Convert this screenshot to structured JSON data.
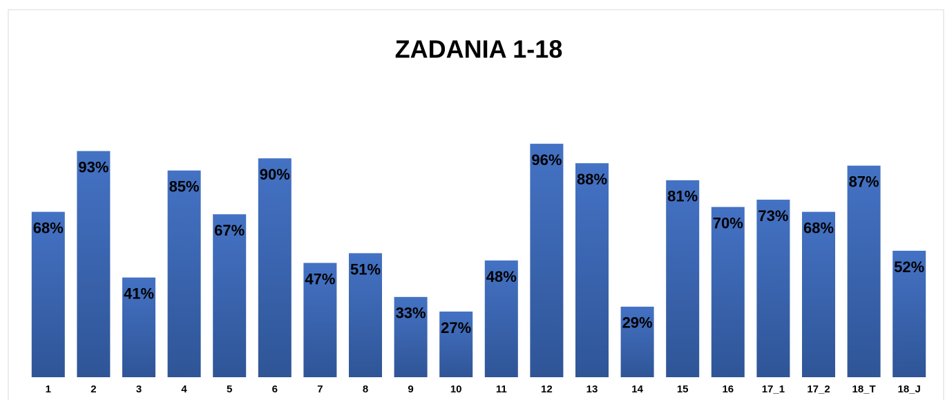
{
  "chart_data": {
    "type": "bar",
    "title": "ZADANIA 1-18",
    "categories": [
      "1",
      "2",
      "3",
      "4",
      "5",
      "6",
      "7",
      "8",
      "9",
      "10",
      "11",
      "12",
      "13",
      "14",
      "15",
      "16",
      "17_1",
      "17_2",
      "18_T",
      "18_J"
    ],
    "values": [
      68,
      93,
      41,
      85,
      67,
      90,
      47,
      51,
      33,
      27,
      48,
      96,
      88,
      29,
      81,
      70,
      73,
      68,
      87,
      52
    ],
    "value_labels": [
      "68%",
      "93%",
      "41%",
      "85%",
      "67%",
      "90%",
      "47%",
      "51%",
      "33%",
      "27%",
      "48%",
      "96%",
      "88%",
      "29%",
      "81%",
      "70%",
      "73%",
      "68%",
      "87%",
      "52%"
    ],
    "color": "#4472c4",
    "ylim": [
      0,
      100
    ]
  }
}
